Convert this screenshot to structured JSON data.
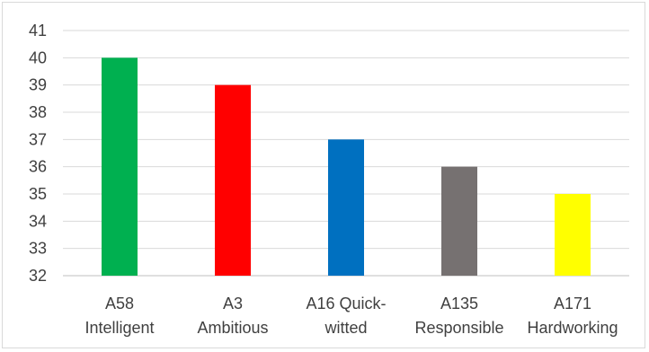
{
  "chart_data": {
    "type": "bar",
    "title": "",
    "xlabel": "",
    "ylabel": "",
    "categories": [
      [
        "A58",
        "Intelligent"
      ],
      [
        "A3",
        "Ambitious"
      ],
      [
        "A16 Quick-",
        "witted"
      ],
      [
        "A135",
        "Responsible"
      ],
      [
        "A171",
        "Hardworking"
      ]
    ],
    "values": [
      40,
      39,
      37,
      36,
      35
    ],
    "colors": [
      "#00b050",
      "#ff0000",
      "#0070c0",
      "#767171",
      "#ffff00"
    ],
    "ylim": [
      32,
      41
    ],
    "yticks": [
      32,
      33,
      34,
      35,
      36,
      37,
      38,
      39,
      40,
      41
    ],
    "grid": true,
    "legend": "none"
  }
}
